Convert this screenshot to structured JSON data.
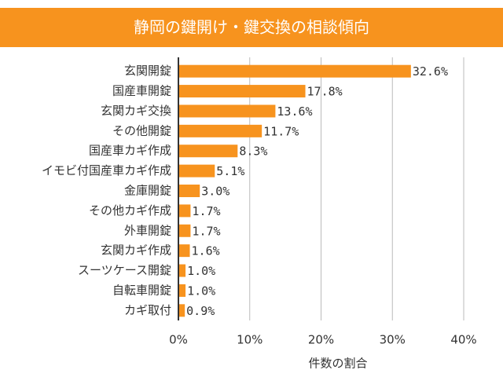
{
  "chart_data": {
    "type": "bar",
    "orientation": "horizontal",
    "title": "静岡の鍵開け・鍵交換の相談傾向",
    "x_label": "件数の割合",
    "categories": [
      "玄関開錠",
      "国産車開錠",
      "玄関カギ交換",
      "その他開錠",
      "国産車カギ作成",
      "イモビ付国産車カギ作成",
      "金庫開錠",
      "その他カギ作成",
      "外車開錠",
      "玄関カギ作成",
      "スーツケース開錠",
      "自転車開錠",
      "カギ取付"
    ],
    "values": [
      32.6,
      17.8,
      13.6,
      11.7,
      8.3,
      5.1,
      3.0,
      1.7,
      1.7,
      1.6,
      1.0,
      1.0,
      0.9
    ],
    "value_labels": [
      "32.6%",
      "17.8%",
      "13.6%",
      "11.7%",
      "8.3%",
      "5.1%",
      "3.0%",
      "1.7%",
      "1.7%",
      "1.6%",
      "1.0%",
      "1.0%",
      "0.9%"
    ],
    "color": "#f7931e",
    "xlim": [
      0,
      40
    ],
    "xticks": [
      {
        "value": 0,
        "label": "0%"
      },
      {
        "value": 10,
        "label": "10%"
      },
      {
        "value": 20,
        "label": "20%"
      },
      {
        "value": 30,
        "label": "30%"
      },
      {
        "value": 40,
        "label": "40%"
      }
    ],
    "grid": true
  }
}
